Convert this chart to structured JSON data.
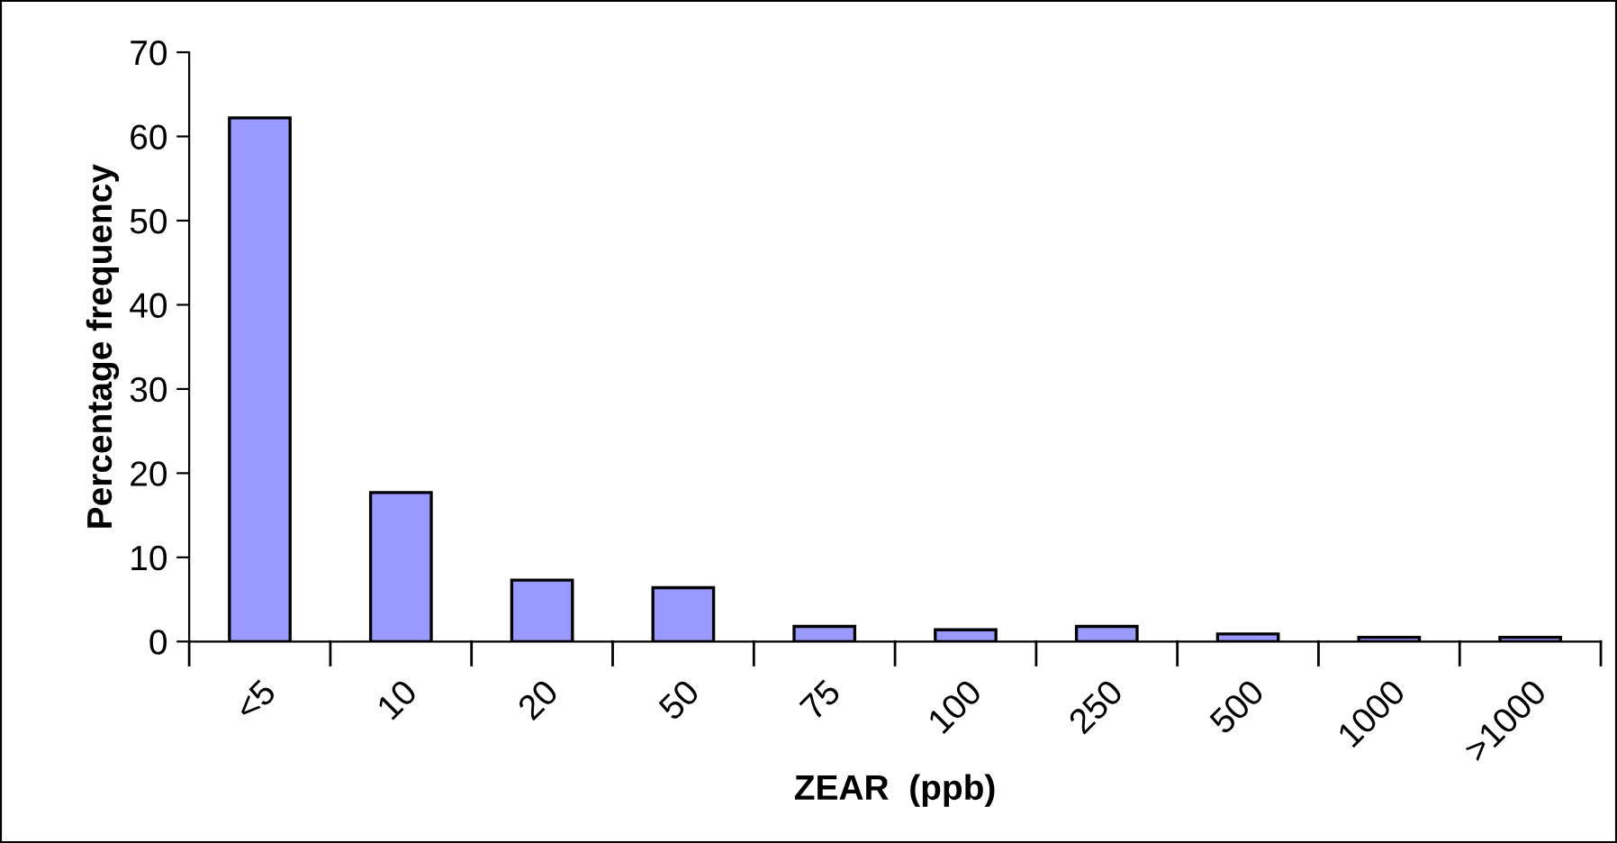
{
  "chart_data": {
    "type": "bar",
    "xlabel": "ZEAR  (ppb)",
    "ylabel": "Percentage frequency",
    "categories": [
      "<5",
      "10",
      "20",
      "50",
      "75",
      "100",
      "250",
      "500",
      "1000",
      ">1000"
    ],
    "values": [
      62.2,
      17.7,
      7.3,
      6.4,
      1.8,
      1.4,
      1.8,
      0.9,
      0.5,
      0.5
    ],
    "color": "#9999ff",
    "ylim": [
      0,
      70
    ],
    "yticks": [
      0,
      10,
      20,
      30,
      40,
      50,
      60,
      70
    ],
    "grid": false,
    "legend": false
  }
}
